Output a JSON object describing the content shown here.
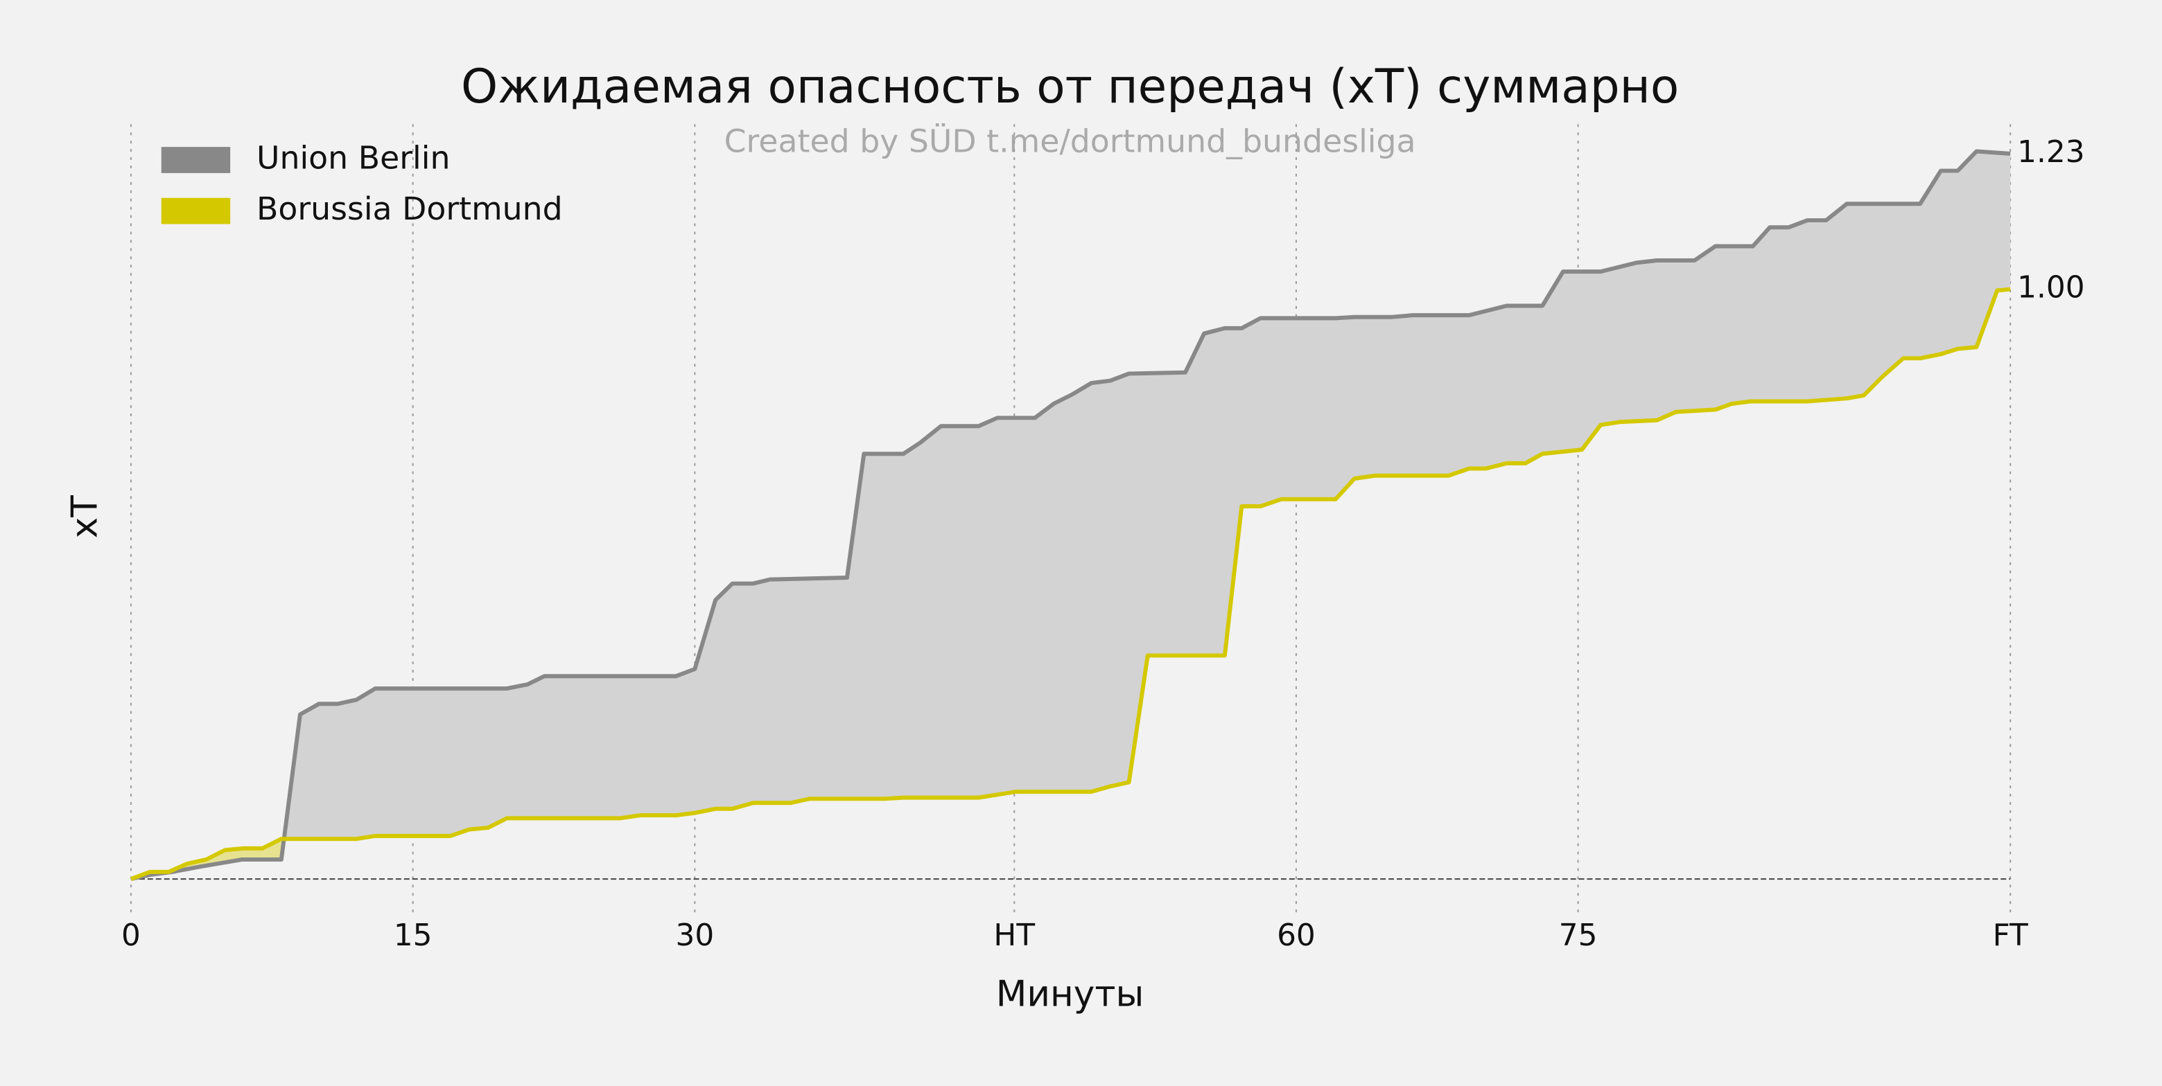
{
  "chart_data": {
    "type": "line",
    "title": "Ожидаемая опасность от передач (xT) суммарно",
    "subtitle": "Created by SÜD t.me/dortmund_bundesliga",
    "xlabel": "Минуты",
    "ylabel": "xT",
    "xlim": [
      0,
      100
    ],
    "ylim": [
      -0.04,
      1.28
    ],
    "xticks": [
      0,
      15,
      30,
      {
        "value": 47,
        "label": "HT"
      },
      {
        "value": 62,
        "label": "60"
      },
      {
        "value": 77,
        "label": "75"
      },
      {
        "value": 100,
        "label": "FT"
      }
    ],
    "yticks": [
      {
        "value": 1,
        "label": "1.00"
      },
      1.23
    ],
    "grid": true,
    "legend": "upper left",
    "fill_between": true,
    "series": [
      {
        "name": "Union Berlin",
        "color": "#888888",
        "x": [
          0,
          1,
          2.2,
          3.7,
          5.9,
          8,
          9,
          10,
          11,
          12,
          13,
          20,
          21.1,
          22,
          29,
          30,
          31.1,
          32,
          33.1,
          34,
          38.1,
          39,
          41.1,
          42,
          43.1,
          45.1,
          46.1,
          48.1,
          49.1,
          50.1,
          51.1,
          52.1,
          53.1,
          56.1,
          57.1,
          58.2,
          59.1,
          60.1,
          64.1,
          65.1,
          67.1,
          68.2,
          71.2,
          73.2,
          75.1,
          76.2,
          78.2,
          80.1,
          81.2,
          83.2,
          84.3,
          86.3,
          87.2,
          88.2,
          89.2,
          90.2,
          91.3,
          95.2,
          96.3,
          97.2,
          98.2,
          100
        ],
        "values": [
          0,
          0.007,
          0.012,
          0.021,
          0.033,
          0.033,
          0.279,
          0.297,
          0.297,
          0.304,
          0.323,
          0.323,
          0.33,
          0.344,
          0.344,
          0.356,
          0.473,
          0.501,
          0.501,
          0.508,
          0.511,
          0.721,
          0.721,
          0.74,
          0.768,
          0.768,
          0.782,
          0.782,
          0.806,
          0.822,
          0.841,
          0.845,
          0.857,
          0.859,
          0.925,
          0.934,
          0.934,
          0.951,
          0.951,
          0.953,
          0.953,
          0.956,
          0.956,
          0.972,
          0.972,
          1.03,
          1.03,
          1.045,
          1.049,
          1.049,
          1.073,
          1.073,
          1.105,
          1.105,
          1.117,
          1.117,
          1.145,
          1.145,
          1.201,
          1.201,
          1.234,
          1.23
        ]
      },
      {
        "name": "Borussia Dortmund",
        "color": "#d4c800",
        "x": [
          0,
          1,
          2,
          3,
          4,
          5,
          6,
          7,
          8,
          12,
          13,
          17,
          18,
          19,
          20,
          26,
          27.1,
          29,
          30,
          31.1,
          32,
          33.1,
          35.1,
          36.1,
          40.1,
          41.1,
          45.1,
          47.1,
          51.1,
          52.1,
          53.1,
          54.1,
          58.2,
          59.1,
          60.1,
          61.2,
          64.1,
          65.1,
          66.2,
          70.1,
          71.2,
          72.1,
          73.2,
          74.2,
          75.1,
          77.2,
          78.2,
          79.2,
          81.2,
          82.2,
          84.3,
          85.2,
          86.2,
          89.2,
          91.3,
          92.2,
          93.2,
          94.3,
          95.2,
          96.3,
          97.2,
          98.2,
          99.3,
          100
        ],
        "values": [
          0,
          0.012,
          0.012,
          0.026,
          0.033,
          0.049,
          0.052,
          0.052,
          0.068,
          0.068,
          0.073,
          0.073,
          0.084,
          0.087,
          0.103,
          0.103,
          0.108,
          0.108,
          0.112,
          0.119,
          0.119,
          0.129,
          0.129,
          0.136,
          0.136,
          0.138,
          0.138,
          0.148,
          0.148,
          0.157,
          0.164,
          0.379,
          0.379,
          0.632,
          0.632,
          0.644,
          0.644,
          0.679,
          0.684,
          0.684,
          0.696,
          0.696,
          0.705,
          0.705,
          0.721,
          0.728,
          0.77,
          0.775,
          0.778,
          0.792,
          0.796,
          0.806,
          0.81,
          0.81,
          0.815,
          0.82,
          0.852,
          0.883,
          0.883,
          0.89,
          0.899,
          0.902,
          0.998,
          1.0
        ]
      }
    ]
  }
}
